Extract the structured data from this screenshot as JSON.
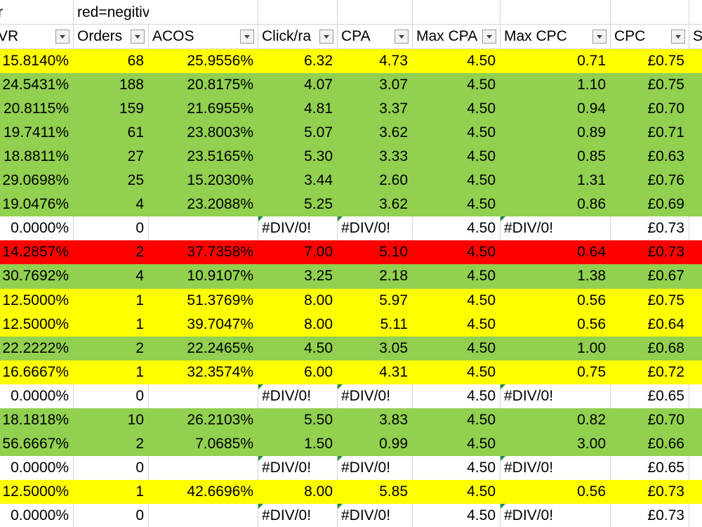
{
  "top_row": [
    "r",
    "red=negitive"
  ],
  "header": [
    "VR",
    "Orders",
    "ACOS",
    "Click/ra",
    "CPA",
    "Max CPA",
    "Max CPC",
    "CPC",
    "S"
  ],
  "fills": {
    "yellow": "#ffff00",
    "green": "#92d050",
    "red": "#ff0000",
    "white": "#ffffff"
  },
  "rows": [
    {
      "fill": "yellow",
      "cells": [
        "15.8140%",
        "68",
        "25.9556%",
        "6.32",
        "4.73",
        "4.50",
        "0.71",
        "£0.75"
      ]
    },
    {
      "fill": "green",
      "cells": [
        "24.5431%",
        "188",
        "20.8175%",
        "4.07",
        "3.07",
        "4.50",
        "1.10",
        "£0.75"
      ]
    },
    {
      "fill": "green",
      "cells": [
        "20.8115%",
        "159",
        "21.6955%",
        "4.81",
        "3.37",
        "4.50",
        "0.94",
        "£0.70"
      ]
    },
    {
      "fill": "green",
      "cells": [
        "19.7411%",
        "61",
        "23.8003%",
        "5.07",
        "3.62",
        "4.50",
        "0.89",
        "£0.71"
      ]
    },
    {
      "fill": "green",
      "cells": [
        "18.8811%",
        "27",
        "23.5165%",
        "5.30",
        "3.33",
        "4.50",
        "0.85",
        "£0.63"
      ]
    },
    {
      "fill": "green",
      "cells": [
        "29.0698%",
        "25",
        "15.2030%",
        "3.44",
        "2.60",
        "4.50",
        "1.31",
        "£0.76"
      ]
    },
    {
      "fill": "green",
      "cells": [
        "19.0476%",
        "4",
        "23.2088%",
        "5.25",
        "3.62",
        "4.50",
        "0.86",
        "£0.69"
      ]
    },
    {
      "fill": "white",
      "cells": [
        "0.0000%",
        "0",
        null,
        "#DIV/0!",
        "#DIV/0!",
        "4.50",
        "#DIV/0!",
        "£0.73"
      ]
    },
    {
      "fill": "red",
      "cells": [
        "14.2857%",
        "2",
        "37.7358%",
        "7.00",
        "5.10",
        "4.50",
        "0.64",
        "£0.73"
      ]
    },
    {
      "fill": "green",
      "cells": [
        "30.7692%",
        "4",
        "10.9107%",
        "3.25",
        "2.18",
        "4.50",
        "1.38",
        "£0.67"
      ]
    },
    {
      "fill": "yellow",
      "cells": [
        "12.5000%",
        "1",
        "51.3769%",
        "8.00",
        "5.97",
        "4.50",
        "0.56",
        "£0.75"
      ]
    },
    {
      "fill": "yellow",
      "cells": [
        "12.5000%",
        "1",
        "39.7047%",
        "8.00",
        "5.11",
        "4.50",
        "0.56",
        "£0.64"
      ]
    },
    {
      "fill": "green",
      "cells": [
        "22.2222%",
        "2",
        "22.2465%",
        "4.50",
        "3.05",
        "4.50",
        "1.00",
        "£0.68"
      ]
    },
    {
      "fill": "yellow",
      "cells": [
        "16.6667%",
        "1",
        "32.3574%",
        "6.00",
        "4.31",
        "4.50",
        "0.75",
        "£0.72"
      ]
    },
    {
      "fill": "white",
      "cells": [
        "0.0000%",
        "0",
        null,
        "#DIV/0!",
        "#DIV/0!",
        "4.50",
        "#DIV/0!",
        "£0.65"
      ]
    },
    {
      "fill": "green",
      "cells": [
        "18.1818%",
        "10",
        "26.2103%",
        "5.50",
        "3.83",
        "4.50",
        "0.82",
        "£0.70"
      ]
    },
    {
      "fill": "green",
      "cells": [
        "56.6667%",
        "2",
        "7.0685%",
        "1.50",
        "0.99",
        "4.50",
        "3.00",
        "£0.66"
      ]
    },
    {
      "fill": "white",
      "cells": [
        "0.0000%",
        "0",
        null,
        "#DIV/0!",
        "#DIV/0!",
        "4.50",
        "#DIV/0!",
        "£0.65"
      ]
    },
    {
      "fill": "yellow",
      "cells": [
        "12.5000%",
        "1",
        "42.6696%",
        "8.00",
        "5.85",
        "4.50",
        "0.56",
        "£0.73"
      ]
    },
    {
      "fill": "white",
      "cells": [
        "0.0000%",
        "0",
        null,
        "#DIV/0!",
        "#DIV/0!",
        "4.50",
        "#DIV/0!",
        "£0.73"
      ]
    }
  ]
}
